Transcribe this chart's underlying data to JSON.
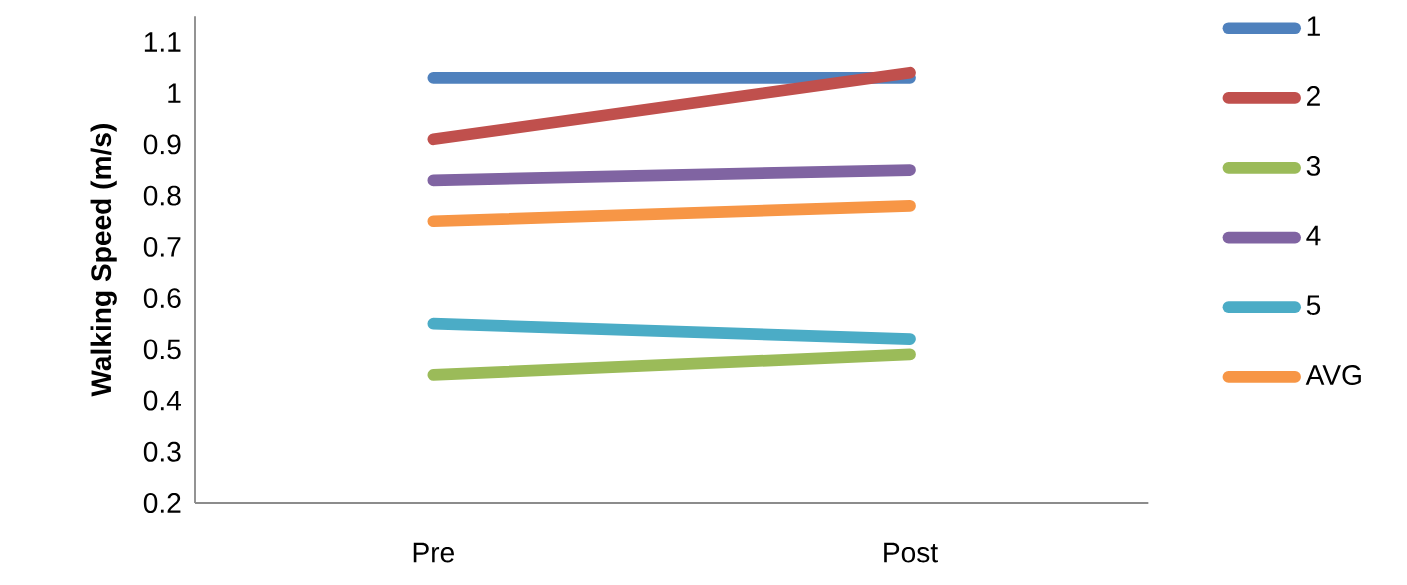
{
  "chart_data": {
    "type": "line",
    "ylabel": "Walking Speed (m/s)",
    "categories": [
      "Pre",
      "Post"
    ],
    "series": [
      {
        "name": "1",
        "color": "#4f81bd",
        "values": [
          1.03,
          1.03
        ]
      },
      {
        "name": "2",
        "color": "#c0504d",
        "values": [
          0.91,
          1.04
        ]
      },
      {
        "name": "3",
        "color": "#9bbb59",
        "values": [
          0.45,
          0.49
        ]
      },
      {
        "name": "4",
        "color": "#8064a2",
        "values": [
          0.83,
          0.85
        ]
      },
      {
        "name": "5",
        "color": "#4bacc6",
        "values": [
          0.55,
          0.52
        ]
      },
      {
        "name": "AVG",
        "color": "#f79646",
        "values": [
          0.75,
          0.78
        ]
      }
    ],
    "ylim": [
      0.2,
      1.15
    ],
    "yticks": [
      0.2,
      0.3,
      0.4,
      0.5,
      0.6,
      0.7,
      0.8,
      0.9,
      1,
      1.1
    ],
    "grid": false,
    "legend": "right",
    "marker": "none",
    "line_style": "solid"
  }
}
